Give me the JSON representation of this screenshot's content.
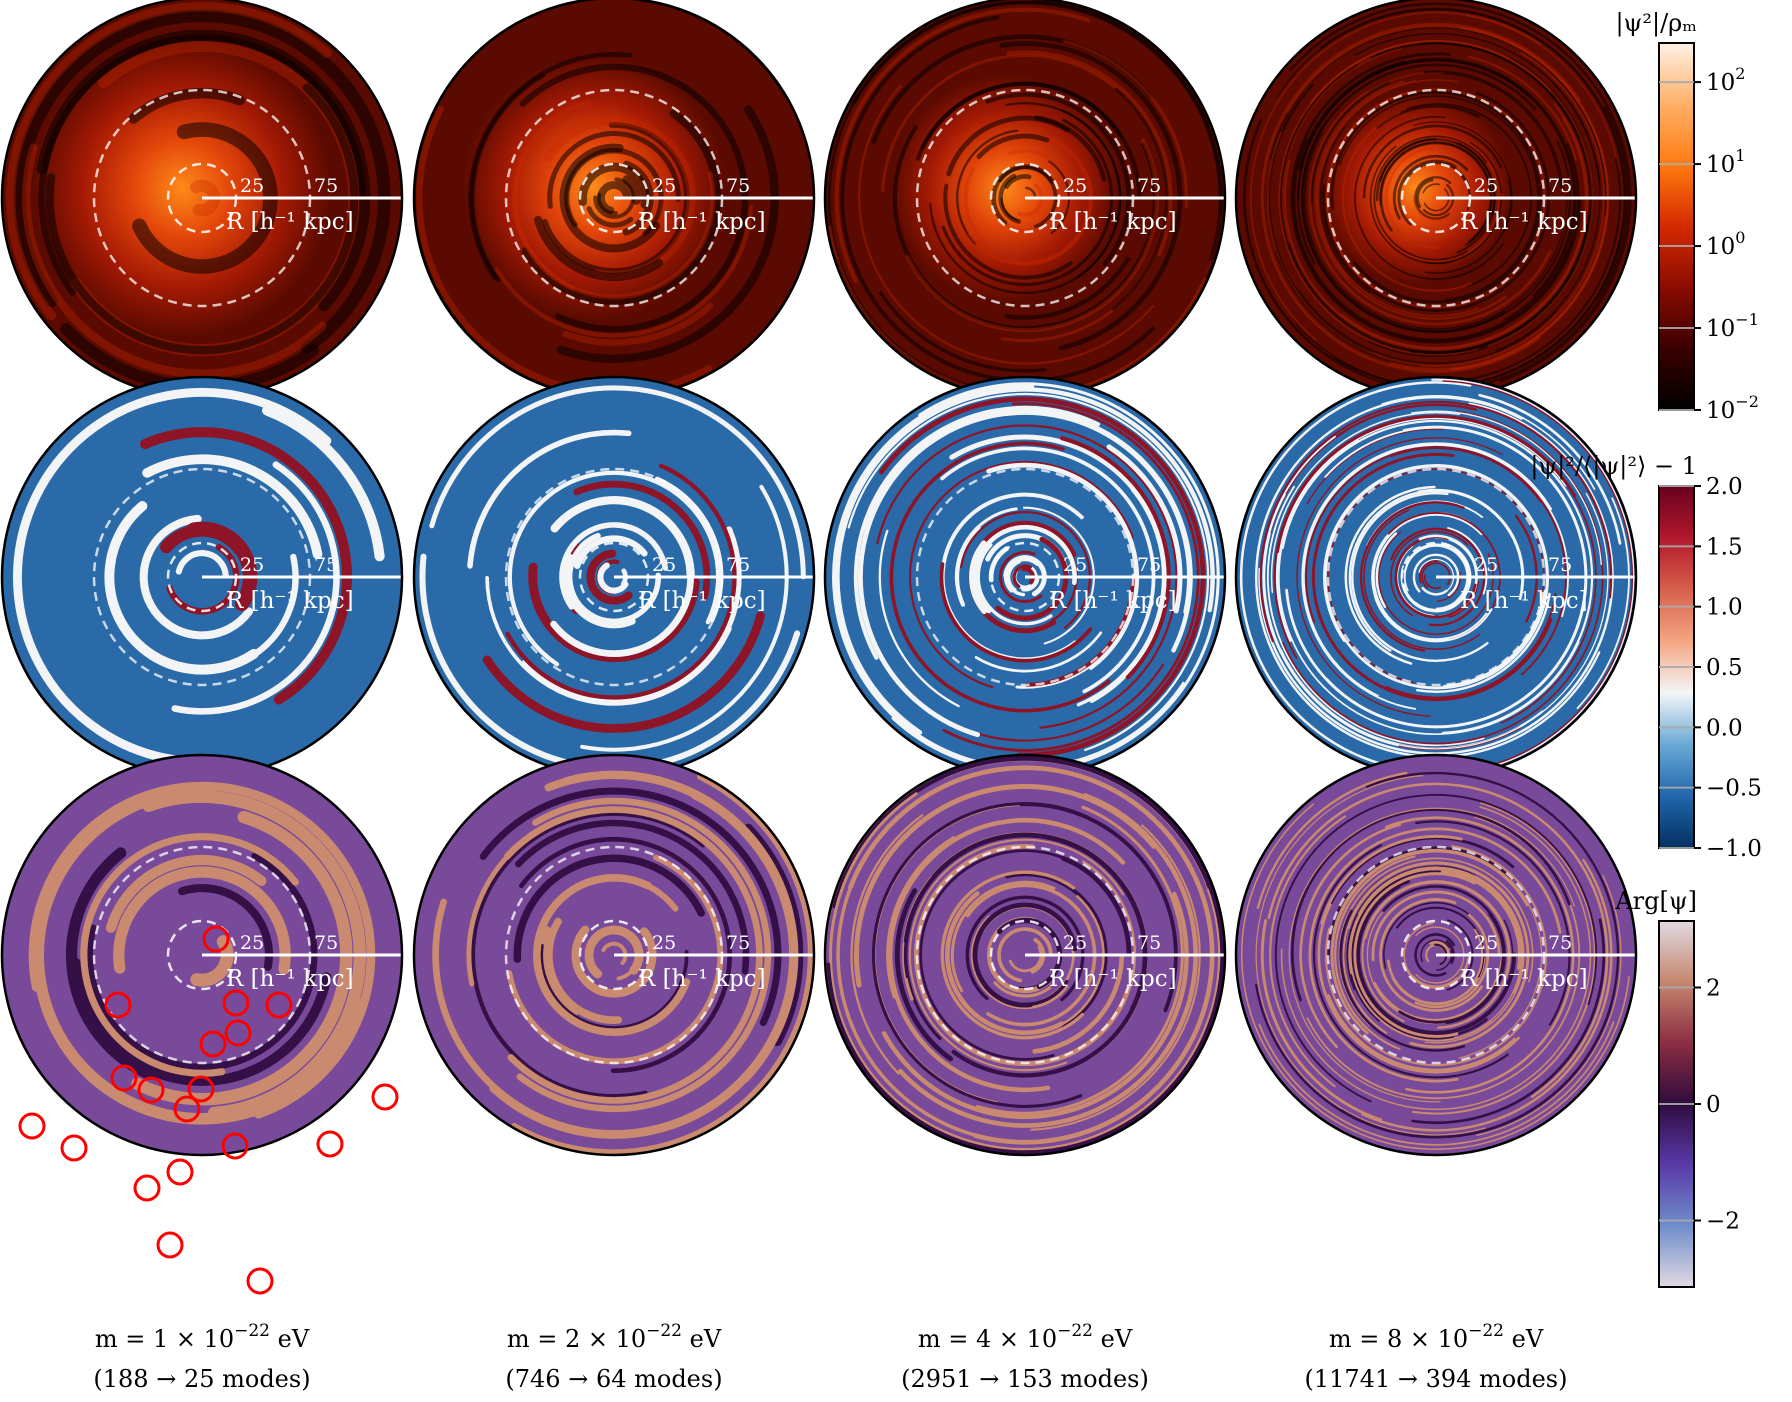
{
  "rows": [
    {
      "name": "density",
      "colorbar": {
        "label": "|ψ²|/ρₘ",
        "scale": "log",
        "range": [
          0.01,
          300
        ],
        "ticks": [
          {
            "main": "10",
            "exp": "2"
          },
          {
            "main": "10",
            "exp": "1"
          },
          {
            "main": "10",
            "exp": "0"
          },
          {
            "main": "10",
            "exp": "−1"
          },
          {
            "main": "10",
            "exp": "−2"
          }
        ],
        "colors": [
          "#000000",
          "#3a0000",
          "#8a0c00",
          "#d42a00",
          "#ff7a10",
          "#ffb068",
          "#fff2e6"
        ]
      }
    },
    {
      "name": "fluctuation",
      "colorbar": {
        "label": "|ψ|²/⟨|ψ|²⟩ − 1",
        "scale": "linear",
        "range": [
          -1.0,
          2.0
        ],
        "ticks": [
          "2.0",
          "1.5",
          "1.0",
          "0.5",
          "0.0",
          "−0.5",
          "−1.0"
        ],
        "colors": [
          "#053061",
          "#2166ac",
          "#6aaad5",
          "#f3f6f8",
          "#f4a582",
          "#d6604d",
          "#b2182b",
          "#67001f"
        ]
      }
    },
    {
      "name": "phase",
      "colorbar": {
        "label": "Arg[ψ]",
        "scale": "linear",
        "range": [
          -3.1416,
          3.1416
        ],
        "ticks": [
          "2",
          "0",
          "−2"
        ],
        "colors": [
          "#e2d9e2",
          "#6f8ecb",
          "#5a3aa8",
          "#2f0c3e",
          "#8b2d42",
          "#c5876d",
          "#e2d9e2"
        ]
      }
    }
  ],
  "radial_axis": {
    "label": "R [h⁻¹ kpc]",
    "ticks": [
      "25",
      "75"
    ]
  },
  "columns": [
    {
      "mass_label": "m = 1 × 10",
      "mass_exp": "−22",
      "mass_unit": " eV",
      "modes_label": "(188 → 25 modes)"
    },
    {
      "mass_label": "m = 2 × 10",
      "mass_exp": "−22",
      "mass_unit": " eV",
      "modes_label": "(746 → 64 modes)"
    },
    {
      "mass_label": "m = 4 × 10",
      "mass_exp": "−22",
      "mass_unit": " eV",
      "modes_label": "(2951 → 153 modes)"
    },
    {
      "mass_label": "m = 8 × 10",
      "mass_exp": "−22",
      "mass_unit": " eV",
      "modes_label": "(11741 → 394 modes)"
    }
  ],
  "vortex_marker_color": "#ff0000"
}
